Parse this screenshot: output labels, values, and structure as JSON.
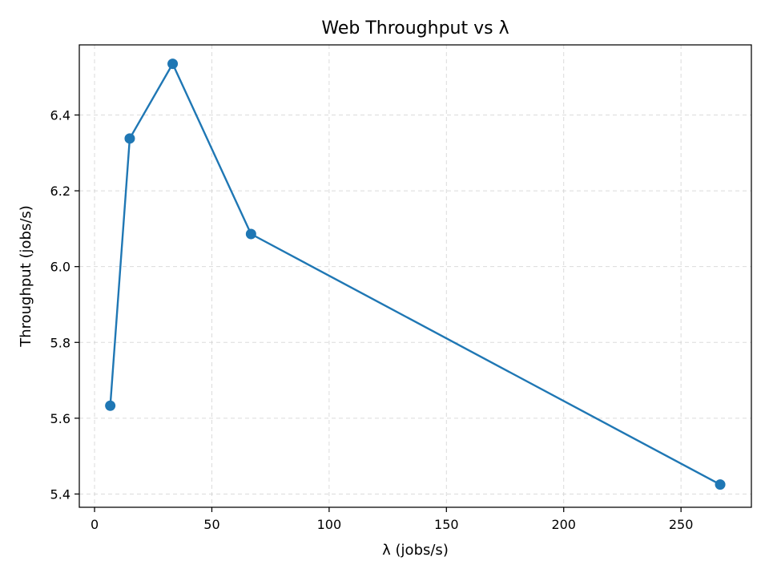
{
  "chart_data": {
    "type": "line",
    "title": "Web Throughput vs λ",
    "xlabel": "λ (jobs/s)",
    "ylabel": "Throughput (jobs/s)",
    "xlim": [
      -6.5,
      280
    ],
    "ylim": [
      5.365,
      6.585
    ],
    "xticks": [
      0,
      50,
      100,
      150,
      200,
      250
    ],
    "yticks": [
      5.4,
      5.6,
      5.8,
      6.0,
      6.2,
      6.4
    ],
    "xtick_labels": [
      "0",
      "50",
      "100",
      "150",
      "200",
      "250"
    ],
    "ytick_labels": [
      "5.4",
      "5.6",
      "5.8",
      "6.0",
      "6.2",
      "6.4"
    ],
    "grid": true,
    "series": [
      {
        "color": "#1f77b4",
        "marker": "circle",
        "x": [
          6.7,
          15.0,
          33.3,
          66.7,
          266.7
        ],
        "y": [
          5.633,
          6.338,
          6.535,
          6.086,
          5.425
        ]
      }
    ]
  }
}
